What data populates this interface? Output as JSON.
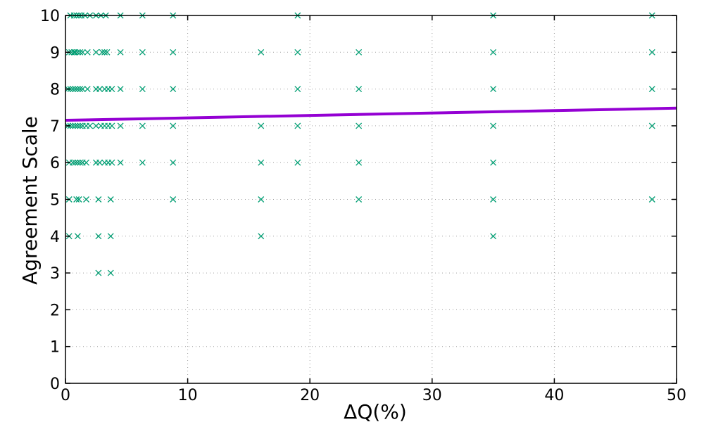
{
  "chart_data": {
    "type": "scatter",
    "xlabel": "ΔQ(%)",
    "ylabel": "Agreement Scale",
    "xlim": [
      0,
      50
    ],
    "ylim": [
      0,
      10
    ],
    "xticks": [
      0,
      10,
      20,
      30,
      40,
      50
    ],
    "yticks": [
      0,
      1,
      2,
      3,
      4,
      5,
      6,
      7,
      8,
      9,
      10
    ],
    "grid": true,
    "colors": {
      "points": "#009e73",
      "fit_line": "#9400d3"
    },
    "series": [
      {
        "type": "scatter",
        "marker": "x",
        "points": [
          [
            0.4,
            10
          ],
          [
            0.7,
            10
          ],
          [
            0.9,
            10
          ],
          [
            1.1,
            10
          ],
          [
            1.3,
            10
          ],
          [
            1.6,
            10
          ],
          [
            2.0,
            10
          ],
          [
            2.5,
            10
          ],
          [
            2.9,
            10
          ],
          [
            3.3,
            10
          ],
          [
            4.5,
            10
          ],
          [
            6.3,
            10
          ],
          [
            8.8,
            10
          ],
          [
            19.0,
            10
          ],
          [
            35.0,
            10
          ],
          [
            48.0,
            10
          ],
          [
            0.3,
            9
          ],
          [
            0.5,
            9
          ],
          [
            0.7,
            9
          ],
          [
            0.8,
            9
          ],
          [
            1.0,
            9
          ],
          [
            1.2,
            9
          ],
          [
            1.4,
            9
          ],
          [
            1.8,
            9
          ],
          [
            2.5,
            9
          ],
          [
            3.0,
            9
          ],
          [
            3.2,
            9
          ],
          [
            3.4,
            9
          ],
          [
            4.5,
            9
          ],
          [
            6.3,
            9
          ],
          [
            8.8,
            9
          ],
          [
            16.0,
            9
          ],
          [
            19.0,
            9
          ],
          [
            24.0,
            9
          ],
          [
            35.0,
            9
          ],
          [
            48.0,
            9
          ],
          [
            0.2,
            8
          ],
          [
            0.4,
            8
          ],
          [
            0.6,
            8
          ],
          [
            0.8,
            8
          ],
          [
            1.0,
            8
          ],
          [
            1.2,
            8
          ],
          [
            1.4,
            8
          ],
          [
            1.8,
            8
          ],
          [
            2.5,
            8
          ],
          [
            2.8,
            8
          ],
          [
            3.2,
            8
          ],
          [
            3.5,
            8
          ],
          [
            3.8,
            8
          ],
          [
            4.5,
            8
          ],
          [
            6.3,
            8
          ],
          [
            8.8,
            8
          ],
          [
            19.0,
            8
          ],
          [
            24.0,
            8
          ],
          [
            35.0,
            8
          ],
          [
            48.0,
            8
          ],
          [
            0.2,
            7
          ],
          [
            0.4,
            7
          ],
          [
            0.6,
            7
          ],
          [
            0.8,
            7
          ],
          [
            1.0,
            7
          ],
          [
            1.2,
            7
          ],
          [
            1.4,
            7
          ],
          [
            1.7,
            7
          ],
          [
            2.0,
            7
          ],
          [
            2.5,
            7
          ],
          [
            2.9,
            7
          ],
          [
            3.2,
            7
          ],
          [
            3.5,
            7
          ],
          [
            3.8,
            7
          ],
          [
            4.5,
            7
          ],
          [
            6.3,
            7
          ],
          [
            8.8,
            7
          ],
          [
            16.0,
            7
          ],
          [
            19.0,
            7
          ],
          [
            24.0,
            7
          ],
          [
            35.0,
            7
          ],
          [
            48.0,
            7
          ],
          [
            0.3,
            6
          ],
          [
            0.6,
            6
          ],
          [
            0.8,
            6
          ],
          [
            1.0,
            6
          ],
          [
            1.2,
            6
          ],
          [
            1.4,
            6
          ],
          [
            1.7,
            6
          ],
          [
            2.5,
            6
          ],
          [
            2.8,
            6
          ],
          [
            3.2,
            6
          ],
          [
            3.5,
            6
          ],
          [
            3.8,
            6
          ],
          [
            4.5,
            6
          ],
          [
            6.3,
            6
          ],
          [
            8.8,
            6
          ],
          [
            16.0,
            6
          ],
          [
            19.0,
            6
          ],
          [
            24.0,
            6
          ],
          [
            35.0,
            6
          ],
          [
            0.3,
            5
          ],
          [
            0.9,
            5
          ],
          [
            1.1,
            5
          ],
          [
            1.7,
            5
          ],
          [
            2.7,
            5
          ],
          [
            3.7,
            5
          ],
          [
            8.8,
            5
          ],
          [
            16.0,
            5
          ],
          [
            24.0,
            5
          ],
          [
            35.0,
            5
          ],
          [
            48.0,
            5
          ],
          [
            0.3,
            4
          ],
          [
            1.0,
            4
          ],
          [
            2.7,
            4
          ],
          [
            3.7,
            4
          ],
          [
            16.0,
            4
          ],
          [
            35.0,
            4
          ],
          [
            2.7,
            3
          ],
          [
            3.7,
            3
          ]
        ]
      },
      {
        "type": "line",
        "points": [
          [
            0,
            7.15
          ],
          [
            50,
            7.48
          ]
        ]
      }
    ]
  }
}
